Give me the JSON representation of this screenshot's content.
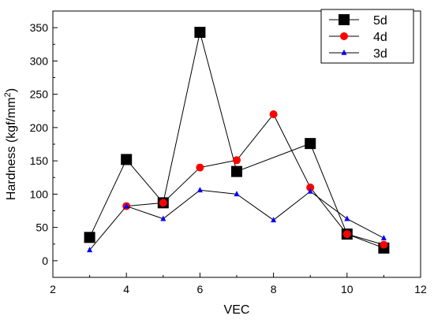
{
  "chart_data": {
    "type": "line",
    "xlabel": "VEC",
    "ylabel_main": "Hardness (kgf/mm",
    "ylabel_sup": "2",
    "ylabel_close": ")",
    "xlim": [
      2,
      12
    ],
    "ylim": [
      -25,
      375
    ],
    "xticks": [
      2,
      4,
      6,
      8,
      10,
      12
    ],
    "yticks": [
      0,
      50,
      100,
      150,
      200,
      250,
      300,
      350
    ],
    "grid": false,
    "legend_position": "top-right",
    "series": [
      {
        "name": "5d",
        "marker": "square",
        "color": "#000000",
        "points": [
          [
            3,
            35
          ],
          [
            4,
            152
          ],
          [
            5,
            87
          ],
          [
            6,
            343
          ],
          [
            7,
            134
          ],
          [
            9,
            176
          ],
          [
            10,
            40
          ],
          [
            11,
            19
          ]
        ]
      },
      {
        "name": "4d",
        "marker": "circle",
        "color": "#ff0000",
        "points": [
          [
            4,
            82
          ],
          [
            5,
            87
          ],
          [
            6,
            140
          ],
          [
            7,
            151
          ],
          [
            8,
            220
          ],
          [
            9,
            110
          ],
          [
            10,
            40
          ],
          [
            11,
            24
          ]
        ]
      },
      {
        "name": "3d",
        "marker": "triangle",
        "color": "#0000ff",
        "points": [
          [
            3,
            16
          ],
          [
            4,
            82
          ],
          [
            5,
            63
          ],
          [
            6,
            106
          ],
          [
            7,
            100
          ],
          [
            8,
            61
          ],
          [
            9,
            104
          ],
          [
            10,
            63
          ],
          [
            11,
            34
          ]
        ]
      }
    ]
  }
}
